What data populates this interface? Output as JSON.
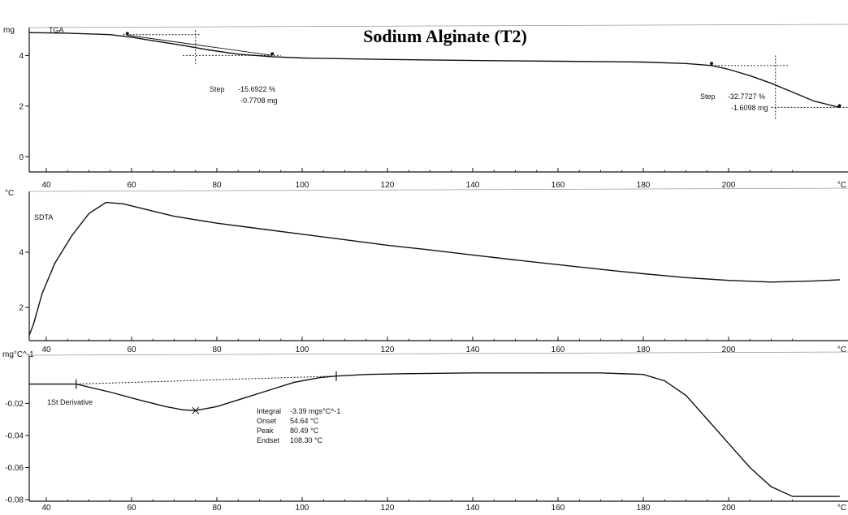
{
  "title": "Sodium Alginate (T2)",
  "chart_data": [
    {
      "type": "line",
      "label": "TGA",
      "unit": "mg",
      "x_ticks": [
        40,
        60,
        80,
        100,
        120,
        140,
        160,
        180,
        200
      ],
      "x_tick_last": "°C",
      "y_ticks": [
        0,
        2,
        4
      ],
      "xlim": [
        36,
        228
      ],
      "ylim": [
        -0.6,
        5.1
      ],
      "series": [
        {
          "x": [
            36,
            45,
            55,
            60,
            65,
            72,
            78,
            85,
            93,
            100,
            120,
            140,
            160,
            180,
            190,
            196,
            200,
            205,
            210,
            215,
            220,
            226
          ],
          "y": [
            4.9,
            4.88,
            4.82,
            4.72,
            4.58,
            4.4,
            4.22,
            4.05,
            3.95,
            3.9,
            3.84,
            3.8,
            3.77,
            3.74,
            3.68,
            3.6,
            3.45,
            3.2,
            2.9,
            2.55,
            2.2,
            1.95
          ]
        }
      ],
      "steps": [
        {
          "label": "Step",
          "value": "-15.6922 %",
          "mass": "-0.7708 mg"
        },
        {
          "label": "Step",
          "value": "-32.7727 %",
          "mass": "-1.6098 mg"
        }
      ]
    },
    {
      "type": "line",
      "label": "SDTA",
      "unit": "°C",
      "x_ticks": [
        40,
        60,
        80,
        100,
        120,
        140,
        160,
        180,
        200
      ],
      "x_tick_last": "°C",
      "y_ticks": [
        2,
        4
      ],
      "xlim": [
        36,
        228
      ],
      "ylim": [
        0.8,
        6.2
      ],
      "series": [
        {
          "x": [
            36,
            37,
            39,
            42,
            46,
            50,
            54,
            58,
            62,
            70,
            80,
            90,
            100,
            110,
            120,
            130,
            140,
            150,
            160,
            170,
            180,
            190,
            200,
            210,
            220,
            226
          ],
          "y": [
            1.0,
            1.4,
            2.5,
            3.6,
            4.6,
            5.4,
            5.8,
            5.75,
            5.6,
            5.3,
            5.05,
            4.85,
            4.65,
            4.45,
            4.25,
            4.08,
            3.9,
            3.72,
            3.55,
            3.38,
            3.22,
            3.08,
            2.98,
            2.92,
            2.96,
            3.0
          ]
        }
      ]
    },
    {
      "type": "line",
      "label": "1St Derivative",
      "unit": "mg°C^-1",
      "x_ticks": [
        40,
        60,
        80,
        100,
        120,
        140,
        160,
        180,
        200
      ],
      "x_tick_last": "°C",
      "y_ticks": [
        -0.02,
        -0.04,
        -0.06,
        -0.08
      ],
      "xlim": [
        36,
        228
      ],
      "ylim": [
        -0.081,
        0.01
      ],
      "series": [
        {
          "x": [
            36,
            40,
            47,
            55,
            62,
            68,
            72,
            75,
            80,
            86,
            92,
            98,
            104,
            108,
            115,
            125,
            140,
            155,
            170,
            180,
            185,
            190,
            195,
            200,
            205,
            210,
            215,
            220,
            226
          ],
          "y": [
            -0.008,
            -0.008,
            -0.008,
            -0.013,
            -0.018,
            -0.022,
            -0.024,
            -0.0245,
            -0.022,
            -0.017,
            -0.012,
            -0.007,
            -0.004,
            -0.003,
            -0.002,
            -0.0015,
            -0.001,
            -0.001,
            -0.001,
            -0.002,
            -0.006,
            -0.015,
            -0.03,
            -0.045,
            -0.06,
            -0.072,
            -0.078,
            -0.078,
            -0.078
          ]
        }
      ],
      "integral": {
        "labels": [
          "Integral",
          "Onset",
          "Peak",
          "Endset"
        ],
        "values": [
          "-3.39 mgs°C^-1",
          "54.64 °C",
          "80.49 °C",
          "108.30 °C"
        ]
      }
    }
  ]
}
